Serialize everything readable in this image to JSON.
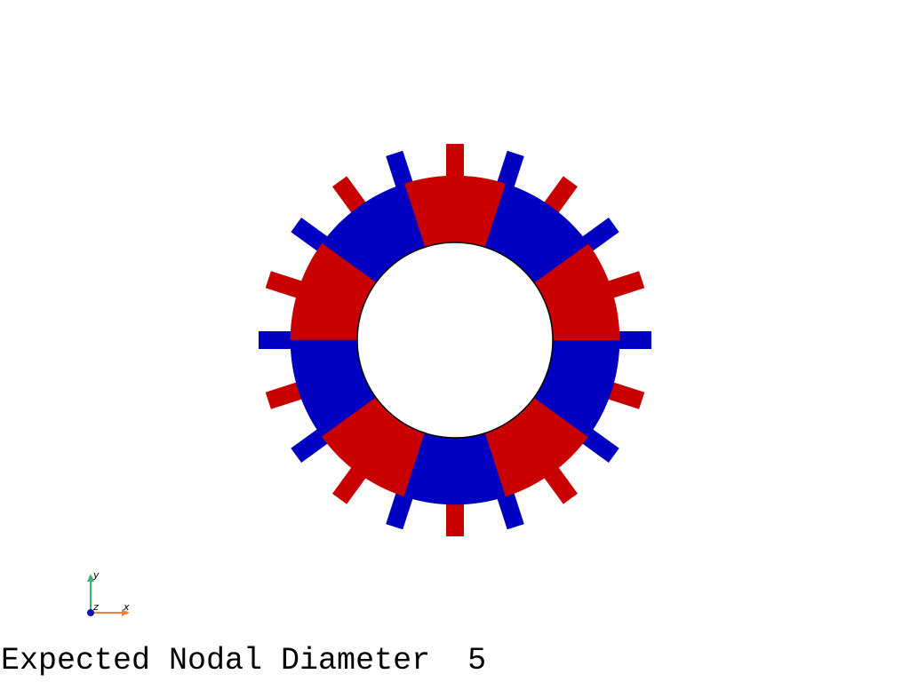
{
  "caption": {
    "label": "Expected Nodal Diameter",
    "value": "5"
  },
  "axes_widget": {
    "x_label": "x",
    "y_label": "y",
    "z_label": "z",
    "x_color": "#f08040",
    "y_color": "#40b070",
    "z_color": "#1010c0"
  },
  "disk": {
    "sectors": 10,
    "blades": 20,
    "colors": {
      "positive": "#c80000",
      "negative": "#0000c0",
      "hole": "#ffffff",
      "edge": "#000000"
    },
    "sector_pattern": [
      "positive",
      "negative",
      "positive",
      "negative",
      "positive",
      "negative",
      "positive",
      "negative",
      "positive",
      "negative"
    ],
    "blade_pattern": [
      "positive",
      "negative",
      "positive",
      "negative",
      "positive",
      "negative",
      "positive",
      "negative",
      "positive",
      "negative",
      "positive",
      "negative",
      "positive",
      "negative",
      "positive",
      "negative",
      "positive",
      "negative",
      "positive",
      "negative"
    ]
  }
}
